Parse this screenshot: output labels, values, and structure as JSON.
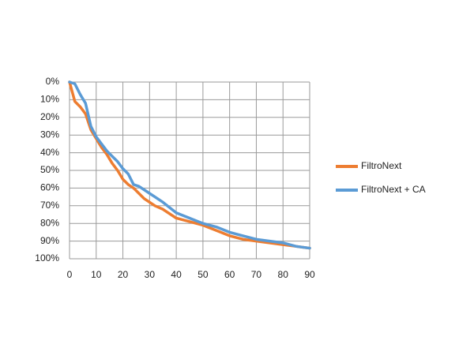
{
  "chart_data": {
    "type": "line",
    "x": [
      0,
      2,
      4,
      6,
      8,
      10,
      12,
      14,
      16,
      18,
      20,
      22,
      24,
      26,
      28,
      30,
      32,
      35,
      40,
      45,
      50,
      55,
      60,
      65,
      70,
      75,
      80,
      85,
      90
    ],
    "series": [
      {
        "name": "FiltroNext",
        "color": "#ed7d31",
        "values": [
          0,
          11,
          14,
          18,
          27,
          32,
          37,
          41,
          46,
          50,
          55,
          58,
          60,
          63,
          66,
          68,
          70,
          72,
          77,
          79,
          81,
          84,
          87,
          89,
          90,
          91,
          92,
          93,
          94
        ]
      },
      {
        "name": "FiltroNext + CA",
        "color": "#5b9bd5",
        "values": [
          0,
          1,
          7,
          12,
          25,
          31,
          35,
          39,
          42,
          45,
          49,
          52,
          58,
          59,
          61,
          63,
          65,
          68,
          74,
          77,
          80,
          82,
          85,
          87,
          89,
          90,
          91,
          93,
          94
        ]
      }
    ],
    "xlim": [
      0,
      90
    ],
    "xticks": [
      0,
      10,
      20,
      30,
      40,
      50,
      60,
      70,
      80,
      90
    ],
    "ylim": [
      100,
      0
    ],
    "yticks": [
      {
        "value": 0,
        "label": "0%"
      },
      {
        "value": 10,
        "label": "10%"
      },
      {
        "value": 20,
        "label": "20%"
      },
      {
        "value": 30,
        "label": "30%"
      },
      {
        "value": 40,
        "label": "40%"
      },
      {
        "value": 50,
        "label": "50%"
      },
      {
        "value": 60,
        "label": "60%"
      },
      {
        "value": 70,
        "label": "70%"
      },
      {
        "value": 80,
        "label": "80%"
      },
      {
        "value": 90,
        "label": "90%"
      },
      {
        "value": 100,
        "label": "100%"
      }
    ],
    "grid": true,
    "legend": "right"
  }
}
